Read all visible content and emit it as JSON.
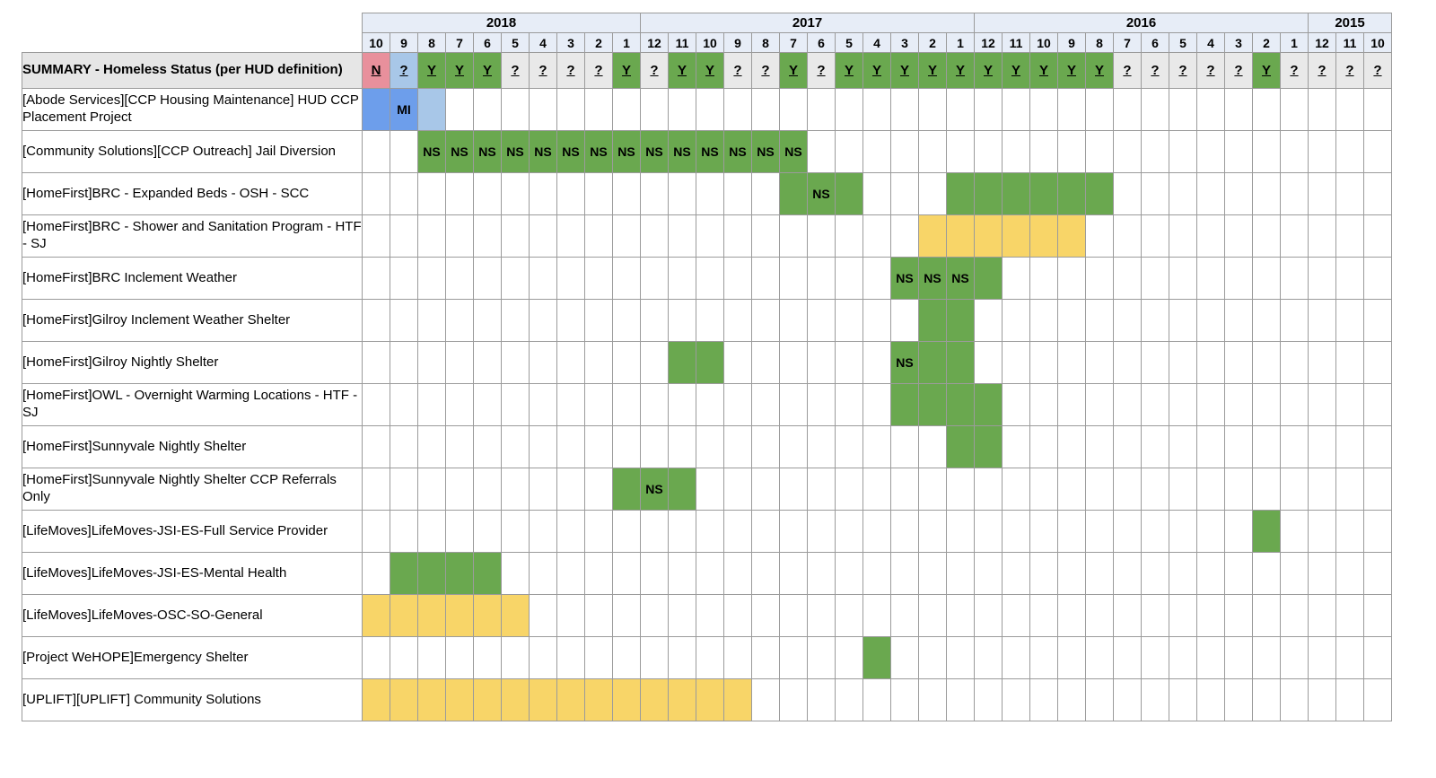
{
  "palette": {
    "header_bg": "#e7edf7",
    "summary_label_bg": "#e6e6e6",
    "border": "#9b9b9b",
    "green": "#6aa84f",
    "yellow": "#f8d568",
    "gray": "#e9e9e9",
    "pink": "#e8909c",
    "blue": "#6d9eeb",
    "lightblue": "#a8c7e8",
    "white": "#ffffff"
  },
  "grid": {
    "year_groups": [
      {
        "label": "2018",
        "months": [
          "10",
          "9",
          "8",
          "7",
          "6",
          "5",
          "4",
          "3",
          "2",
          "1"
        ]
      },
      {
        "label": "2017",
        "months": [
          "12",
          "11",
          "10",
          "9",
          "8",
          "7",
          "6",
          "5",
          "4",
          "3",
          "2",
          "1"
        ]
      },
      {
        "label": "2016",
        "months": [
          "12",
          "11",
          "10",
          "9",
          "8",
          "7",
          "6",
          "5",
          "4",
          "3",
          "2",
          "1"
        ]
      },
      {
        "label": "2015",
        "months": [
          "12",
          "11",
          "10"
        ]
      }
    ],
    "summary_row": {
      "label": "SUMMARY - Homeless Status (per HUD definition)",
      "cells": [
        {
          "value": "N",
          "color": "pink"
        },
        {
          "value": "?",
          "color": "lightblue"
        },
        {
          "value": "Y",
          "color": "green"
        },
        {
          "value": "Y",
          "color": "green"
        },
        {
          "value": "Y",
          "color": "green"
        },
        {
          "value": "?",
          "color": "gray"
        },
        {
          "value": "?",
          "color": "gray"
        },
        {
          "value": "?",
          "color": "gray"
        },
        {
          "value": "?",
          "color": "gray"
        },
        {
          "value": "Y",
          "color": "green"
        },
        {
          "value": "?",
          "color": "gray"
        },
        {
          "value": "Y",
          "color": "green"
        },
        {
          "value": "Y",
          "color": "green"
        },
        {
          "value": "?",
          "color": "gray"
        },
        {
          "value": "?",
          "color": "gray"
        },
        {
          "value": "Y",
          "color": "green"
        },
        {
          "value": "?",
          "color": "gray"
        },
        {
          "value": "Y",
          "color": "green"
        },
        {
          "value": "Y",
          "color": "green"
        },
        {
          "value": "Y",
          "color": "green"
        },
        {
          "value": "Y",
          "color": "green"
        },
        {
          "value": "Y",
          "color": "green"
        },
        {
          "value": "Y",
          "color": "green"
        },
        {
          "value": "Y",
          "color": "green"
        },
        {
          "value": "Y",
          "color": "green"
        },
        {
          "value": "Y",
          "color": "green"
        },
        {
          "value": "Y",
          "color": "green"
        },
        {
          "value": "?",
          "color": "gray"
        },
        {
          "value": "?",
          "color": "gray"
        },
        {
          "value": "?",
          "color": "gray"
        },
        {
          "value": "?",
          "color": "gray"
        },
        {
          "value": "?",
          "color": "gray"
        },
        {
          "value": "Y",
          "color": "green"
        },
        {
          "value": "?",
          "color": "gray"
        },
        {
          "value": "?",
          "color": "gray"
        },
        {
          "value": "?",
          "color": "gray"
        },
        {
          "value": "?",
          "color": "gray"
        }
      ]
    },
    "program_rows": [
      {
        "label": "[Abode Services][CCP Housing Maintenance] HUD CCP Placement Project",
        "spans": [
          {
            "from": 0,
            "to": 0,
            "color": "blue",
            "text": ""
          },
          {
            "from": 1,
            "to": 1,
            "color": "blue",
            "text": "MI"
          },
          {
            "from": 2,
            "to": 2,
            "color": "lightblue",
            "text": ""
          }
        ]
      },
      {
        "label": "[Community Solutions][CCP Outreach] Jail Diversion",
        "spans": [
          {
            "from": 2,
            "to": 15,
            "color": "green",
            "text": "NS"
          }
        ]
      },
      {
        "label": "[HomeFirst]BRC - Expanded Beds - OSH - SCC",
        "spans": [
          {
            "from": 15,
            "to": 15,
            "color": "green",
            "text": ""
          },
          {
            "from": 16,
            "to": 16,
            "color": "green",
            "text": "NS"
          },
          {
            "from": 17,
            "to": 17,
            "color": "green",
            "text": ""
          },
          {
            "from": 21,
            "to": 26,
            "color": "green",
            "text": ""
          }
        ]
      },
      {
        "label": "[HomeFirst]BRC - Shower and Sanitation Program - HTF - SJ",
        "spans": [
          {
            "from": 20,
            "to": 25,
            "color": "yellow",
            "text": ""
          }
        ]
      },
      {
        "label": "[HomeFirst]BRC Inclement Weather",
        "spans": [
          {
            "from": 19,
            "to": 21,
            "color": "green",
            "text": "NS"
          },
          {
            "from": 22,
            "to": 22,
            "color": "green",
            "text": ""
          }
        ]
      },
      {
        "label": "[HomeFirst]Gilroy Inclement Weather Shelter",
        "spans": [
          {
            "from": 20,
            "to": 21,
            "color": "green",
            "text": ""
          }
        ]
      },
      {
        "label": "[HomeFirst]Gilroy Nightly Shelter",
        "spans": [
          {
            "from": 11,
            "to": 12,
            "color": "green",
            "text": ""
          },
          {
            "from": 19,
            "to": 19,
            "color": "green",
            "text": "NS"
          },
          {
            "from": 20,
            "to": 21,
            "color": "green",
            "text": ""
          }
        ]
      },
      {
        "label": "[HomeFirst]OWL - Overnight Warming Locations - HTF - SJ",
        "spans": [
          {
            "from": 19,
            "to": 22,
            "color": "green",
            "text": ""
          }
        ]
      },
      {
        "label": "[HomeFirst]Sunnyvale Nightly Shelter",
        "spans": [
          {
            "from": 21,
            "to": 22,
            "color": "green",
            "text": ""
          }
        ]
      },
      {
        "label": "[HomeFirst]Sunnyvale Nightly Shelter CCP Referrals Only",
        "spans": [
          {
            "from": 9,
            "to": 9,
            "color": "green",
            "text": ""
          },
          {
            "from": 10,
            "to": 10,
            "color": "green",
            "text": "NS"
          },
          {
            "from": 11,
            "to": 11,
            "color": "green",
            "text": ""
          }
        ]
      },
      {
        "label": "[LifeMoves]LifeMoves-JSI-ES-Full Service Provider",
        "spans": [
          {
            "from": 32,
            "to": 32,
            "color": "green",
            "text": ""
          }
        ]
      },
      {
        "label": "[LifeMoves]LifeMoves-JSI-ES-Mental Health",
        "spans": [
          {
            "from": 1,
            "to": 4,
            "color": "green",
            "text": ""
          }
        ]
      },
      {
        "label": "[LifeMoves]LifeMoves-OSC-SO-General",
        "spans": [
          {
            "from": 0,
            "to": 5,
            "color": "yellow",
            "text": ""
          }
        ]
      },
      {
        "label": "[Project WeHOPE]Emergency Shelter",
        "spans": [
          {
            "from": 18,
            "to": 18,
            "color": "green",
            "text": ""
          }
        ]
      },
      {
        "label": "[UPLIFT][UPLIFT] Community Solutions",
        "spans": [
          {
            "from": 0,
            "to": 13,
            "color": "yellow",
            "text": ""
          }
        ]
      }
    ]
  }
}
